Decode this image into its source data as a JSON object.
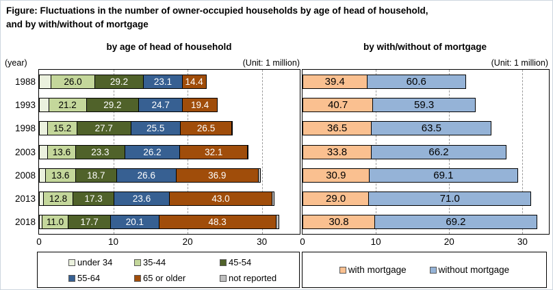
{
  "figure_title": {
    "line1": "Figure: Fluctuations in the number of owner-occupied households by age of head of household,",
    "line2": "and by with/without of mortgage"
  },
  "chart_data": [
    {
      "type": "bar",
      "subtype": "horizontal-stacked",
      "title": "by age of head of household",
      "unit_label": "(Unit: 1 million)",
      "year_axis_label": "(year)",
      "note": "Segment labels are percentage shares; bar length is total owner-occupied households in millions",
      "categories": [
        "1988",
        "1993",
        "1998",
        "2003",
        "2008",
        "2013",
        "2018"
      ],
      "totals_million": [
        22.9,
        24.4,
        26.5,
        28.7,
        30.3,
        32.2,
        32.8
      ],
      "series": [
        {
          "name": "under 34",
          "color": "#EBF1DE",
          "label_color": null,
          "values_pct_est": [
            "7.3",
            "5.5",
            "4.6",
            "4.1",
            "3.0",
            "1.9",
            "1.4"
          ]
        },
        {
          "name": "35-44",
          "color": "#C4D79B",
          "label_color": "#000000",
          "values_pct": [
            "26.0",
            "21.2",
            "15.2",
            "13.6",
            "13.6",
            "12.8",
            "11.0"
          ]
        },
        {
          "name": "45-54",
          "color": "#50622A",
          "label_color": "#FFFFFF",
          "values_pct": [
            "29.2",
            "29.2",
            "27.7",
            "23.3",
            "18.7",
            "17.3",
            "17.7"
          ]
        },
        {
          "name": "55-64",
          "color": "#376092",
          "label_color": "#FFFFFF",
          "values_pct": [
            "23.1",
            "24.7",
            "25.5",
            "26.2",
            "26.6",
            "23.6",
            "20.1"
          ]
        },
        {
          "name": "65 or older",
          "color": "#A04D0A",
          "label_color": "#FFFFFF",
          "values_pct": [
            "14.4",
            "19.4",
            "26.5",
            "32.1",
            "36.9",
            "43.0",
            "48.3"
          ]
        },
        {
          "name": "not reported",
          "color": "#BFBFBF",
          "label_color": null,
          "values_pct_est": [
            "0.0",
            "0.0",
            "0.5",
            "0.7",
            "1.2",
            "1.4",
            "1.5"
          ]
        }
      ],
      "x_ticks": [
        0,
        10,
        20,
        30
      ],
      "x_max": 35.1,
      "grid": "dashed-vertical",
      "legend_position": "bottom",
      "show_year_labels": true
    },
    {
      "type": "bar",
      "subtype": "horizontal-stacked",
      "title": "by with/without of mortgage",
      "unit_label": "(Unit: 1 million)",
      "note": "Segment labels are percentage shares; bar length is total households in millions",
      "categories": [
        "1988",
        "1993",
        "1998",
        "2003",
        "2008",
        "2013",
        "2018"
      ],
      "totals_million_est": [
        22.4,
        23.7,
        25.9,
        27.9,
        29.5,
        31.3,
        32.1
      ],
      "series": [
        {
          "name": "with mortgage",
          "color": "#FAC090",
          "label_color": "#000000",
          "values_pct": [
            "39.4",
            "40.7",
            "36.5",
            "33.8",
            "30.9",
            "29.0",
            "30.8"
          ]
        },
        {
          "name": "without mortgage",
          "color": "#95B3D7",
          "label_color": "#000000",
          "values_pct": [
            "60.6",
            "59.3",
            "63.5",
            "66.2",
            "69.1",
            "71.0",
            "69.2"
          ]
        }
      ],
      "x_ticks": [
        0,
        10,
        20,
        30
      ],
      "x_max": 33.6,
      "grid": "dashed-vertical",
      "legend_position": "bottom",
      "show_year_labels": false
    }
  ]
}
